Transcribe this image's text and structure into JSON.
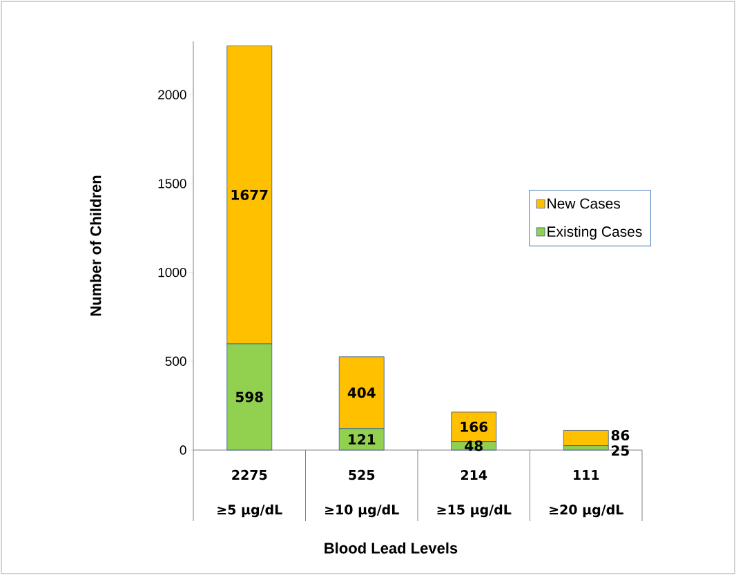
{
  "chart_data": {
    "type": "bar",
    "stacked": true,
    "xlabel": "Blood Lead Levels",
    "ylabel": "Number of Children",
    "categories": [
      "≥5 µg/dL",
      "≥10 µg/dL",
      "≥15 µg/dL",
      "≥20 µg/dL"
    ],
    "series": [
      {
        "name": "Existing Cases",
        "color": "#92d050",
        "values": [
          598,
          121,
          48,
          25
        ]
      },
      {
        "name": "New Cases",
        "color": "#ffc000",
        "values": [
          1677,
          404,
          166,
          86
        ]
      }
    ],
    "totals": [
      "2275",
      "525",
      "214",
      "111"
    ],
    "data_labels": true,
    "ylim": [
      0,
      2300
    ],
    "yticks": [
      0,
      500,
      1000,
      1500,
      2000
    ],
    "legend": "right",
    "grid": false
  }
}
